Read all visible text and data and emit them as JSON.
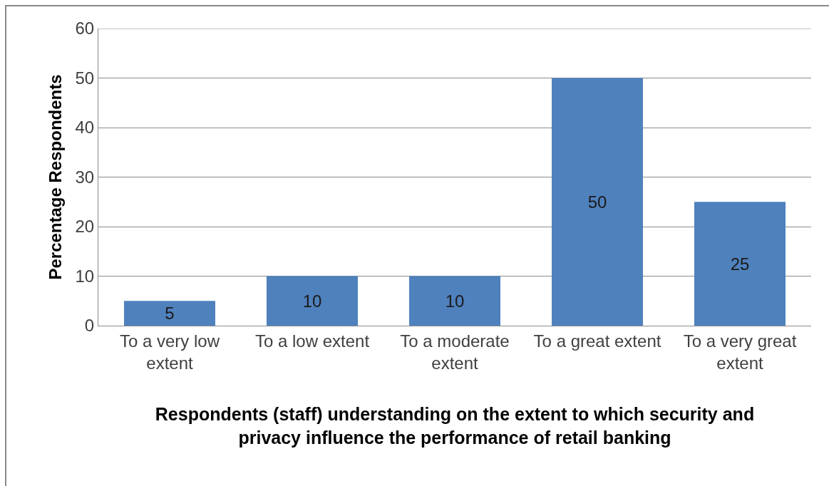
{
  "chart_data": {
    "type": "bar",
    "categories": [
      "To a very low extent",
      "To a low extent",
      "To a moderate extent",
      "To a great extent",
      "To a very great extent"
    ],
    "values": [
      5,
      10,
      10,
      50,
      25
    ],
    "color": "#4f81bd",
    "xlabel": "Respondents (staff) understanding on the extent to which security and privacy influence the performance of retail banking",
    "ylabel": "Percentage Respondents",
    "ylim": [
      0,
      60
    ],
    "yticks": [
      0,
      10,
      20,
      30,
      40,
      50,
      60
    ],
    "grid": "y",
    "data_labels": true
  }
}
